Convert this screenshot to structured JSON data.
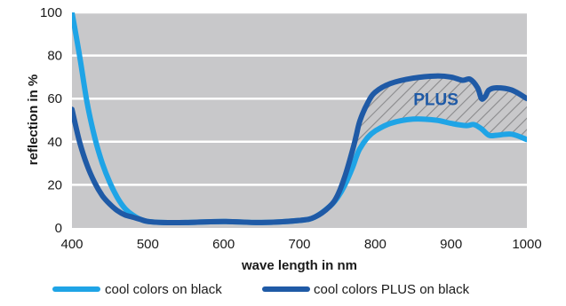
{
  "chart_data": {
    "type": "line",
    "title": "",
    "xlabel": "wave length in nm",
    "ylabel": "reflection in %",
    "xlim": [
      400,
      1000
    ],
    "ylim": [
      0,
      100
    ],
    "x_ticks": [
      "400",
      "500",
      "600",
      "700",
      "800",
      "900",
      "1000"
    ],
    "y_ticks": [
      "0",
      "20",
      "40",
      "60",
      "80",
      "100"
    ],
    "grid": true,
    "background": "#c8c8ca",
    "annotation": "PLUS",
    "legend_position": "bottom",
    "series": [
      {
        "name": "cool colors on black",
        "color": "#1fa4e6",
        "x": [
          400,
          410,
          420,
          430,
          440,
          450,
          460,
          470,
          480,
          490,
          500,
          520,
          550,
          600,
          650,
          700,
          720,
          740,
          750,
          760,
          770,
          775,
          780,
          790,
          800,
          820,
          850,
          880,
          900,
          920,
          930,
          940,
          950,
          960,
          980,
          1000
        ],
        "y": [
          100,
          80,
          58,
          42,
          30,
          21,
          14,
          9,
          6,
          4,
          3,
          2.5,
          2.5,
          3,
          2.5,
          3.5,
          5,
          10,
          14,
          20,
          28,
          33,
          37,
          42,
          45,
          48.5,
          50.5,
          50,
          48.5,
          47.5,
          48,
          46,
          43,
          43,
          43.5,
          41
        ]
      },
      {
        "name": "cool colors PLUS on black",
        "color": "#1f5aa6",
        "x": [
          400,
          410,
          420,
          430,
          440,
          450,
          460,
          470,
          480,
          490,
          500,
          520,
          550,
          600,
          650,
          700,
          720,
          740,
          750,
          760,
          770,
          775,
          780,
          790,
          800,
          820,
          850,
          880,
          900,
          915,
          925,
          935,
          940,
          945,
          950,
          960,
          980,
          1000
        ],
        "y": [
          55,
          40,
          29,
          21,
          15,
          11,
          8,
          6,
          5,
          4,
          3,
          2.5,
          2.5,
          3,
          2.5,
          3.5,
          5,
          10,
          15,
          24,
          36,
          43,
          50,
          58,
          63,
          67,
          69.5,
          70.5,
          70,
          68.5,
          69,
          65,
          60,
          61,
          64,
          65,
          64,
          60
        ]
      }
    ]
  }
}
